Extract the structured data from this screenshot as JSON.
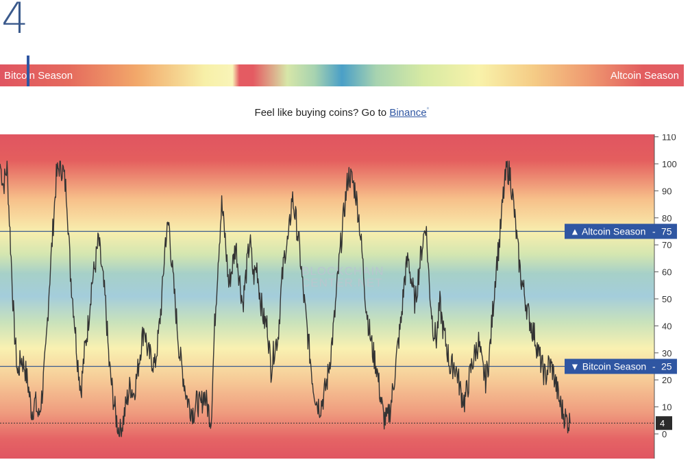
{
  "header": {
    "index_value": "4"
  },
  "season_bar": {
    "left_label": "Bitcoin Season",
    "right_label": "Altcoin Season",
    "marker_value": 4
  },
  "promo": {
    "text": "Feel like buying coins? Go to ",
    "link_text": "Binance",
    "link_suffix": "*"
  },
  "chart_data": {
    "type": "line",
    "title": "",
    "xlabel": "",
    "ylabel": "",
    "ylim": [
      -5,
      110
    ],
    "y_ticks": [
      0,
      10,
      20,
      30,
      40,
      50,
      60,
      70,
      80,
      90,
      100,
      110
    ],
    "grid": false,
    "legend": "none",
    "watermark": "BLOCKCHAIN CENTER.NET",
    "reference_lines": [
      {
        "label": "▲ Altcoin Season",
        "value_label": "75",
        "value": 75
      },
      {
        "label": "▼ Bitcoin Season",
        "value_label": "25",
        "value": 25
      }
    ],
    "current_value_label": "4",
    "current_value": 4,
    "series": [
      {
        "color": "#333333",
        "values": [
          100,
          92,
          99,
          70,
          40,
          22,
          28,
          25,
          18,
          8,
          12,
          6,
          15,
          30,
          55,
          75,
          95,
          100,
          97,
          88,
          60,
          45,
          28,
          16,
          30,
          40,
          55,
          62,
          72,
          60,
          48,
          26,
          15,
          6,
          0,
          5,
          12,
          18,
          15,
          22,
          32,
          40,
          30,
          28,
          25,
          36,
          50,
          72,
          78,
          60,
          45,
          30,
          22,
          14,
          10,
          8,
          12,
          10,
          15,
          10,
          5,
          40,
          65,
          85,
          72,
          55,
          62,
          70,
          58,
          48,
          60,
          72,
          58,
          62,
          50,
          42,
          40,
          24,
          32,
          36,
          55,
          68,
          72,
          88,
          80,
          70,
          55,
          42,
          30,
          18,
          12,
          10,
          14,
          20,
          30,
          42,
          58,
          72,
          85,
          96,
          94,
          90,
          80,
          65,
          48,
          38,
          30,
          25,
          15,
          6,
          5,
          10,
          20,
          32,
          42,
          58,
          65,
          56,
          48,
          60,
          70,
          78,
          55,
          40,
          35,
          48,
          38,
          32,
          24,
          26,
          22,
          15,
          12,
          18,
          25,
          30,
          34,
          25,
          20,
          28,
          45,
          62,
          72,
          88,
          98,
          96,
          84,
          70,
          58,
          52,
          45,
          40,
          36,
          30,
          25,
          21,
          26,
          24,
          18,
          12,
          8,
          5,
          4
        ]
      }
    ]
  }
}
